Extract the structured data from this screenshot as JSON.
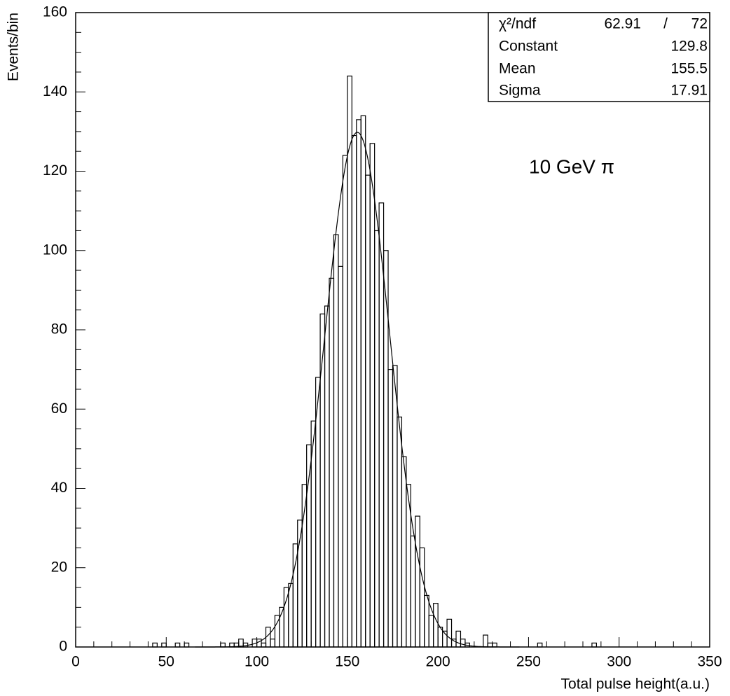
{
  "chart_data": {
    "type": "histogram",
    "x_label": "Total pulse height(a.u.)",
    "y_label": "Events/bin",
    "annotation": "10 GeV π",
    "xlim": [
      0,
      350
    ],
    "ylim": [
      0,
      160
    ],
    "xticks": [
      0,
      50,
      100,
      150,
      200,
      250,
      300,
      350
    ],
    "yticks": [
      0,
      20,
      40,
      60,
      80,
      100,
      120,
      140,
      160
    ],
    "color": "#000000",
    "bins": [
      40,
      42.5,
      45,
      47.5,
      50,
      52.5,
      55,
      57.5,
      60,
      62.5,
      65,
      67.5,
      70,
      72.5,
      75,
      77.5,
      80,
      82.5,
      85,
      87.5,
      90,
      92.5,
      95,
      97.5,
      100,
      102.5,
      105,
      107.5,
      110,
      112.5,
      115,
      117.5,
      120,
      122.5,
      125,
      127.5,
      130,
      132.5,
      135,
      137.5,
      140,
      142.5,
      145,
      147.5,
      150,
      152.5,
      155,
      157.5,
      160,
      162.5,
      165,
      167.5,
      170,
      172.5,
      175,
      177.5,
      180,
      182.5,
      185,
      187.5,
      190,
      192.5,
      195,
      197.5,
      200,
      202.5,
      205,
      207.5,
      210,
      212.5,
      215,
      217.5,
      220,
      222.5,
      225,
      227.5,
      230,
      232.5,
      235,
      237.5,
      240,
      242.5,
      245,
      247.5,
      250,
      252.5,
      255,
      257.5,
      260,
      262.5,
      265,
      267.5,
      270,
      272.5,
      275,
      277.5,
      280,
      282.5,
      285,
      287.5,
      290
    ],
    "values": [
      0,
      1,
      0,
      1,
      0,
      0,
      1,
      0,
      1,
      0,
      0,
      0,
      0,
      0,
      0,
      0,
      1,
      0,
      1,
      1,
      2,
      1,
      0,
      2,
      2,
      1,
      5,
      2,
      8,
      10,
      15,
      16,
      26,
      32,
      41,
      51,
      57,
      68,
      84,
      86,
      93,
      104,
      96,
      124,
      144,
      129,
      133,
      134,
      119,
      127,
      105,
      112,
      100,
      70,
      71,
      58,
      48,
      41,
      28,
      33,
      25,
      13,
      8,
      11,
      5,
      4,
      7,
      2,
      4,
      2,
      1,
      0,
      0,
      0,
      3,
      1,
      1,
      0,
      0,
      0,
      0,
      0,
      0,
      0,
      0,
      0,
      1,
      0,
      0,
      0,
      0,
      0,
      0,
      0,
      0,
      0,
      0,
      0,
      1,
      0
    ],
    "stats": {
      "chi2": {
        "label": "χ²/ndf",
        "value": 62.91,
        "separator": "/",
        "ndf": 72
      },
      "rows": [
        {
          "label": "Constant",
          "value": 129.8
        },
        {
          "label": "Mean",
          "value": 155.5
        },
        {
          "label": "Sigma",
          "value": 17.91
        }
      ]
    }
  }
}
